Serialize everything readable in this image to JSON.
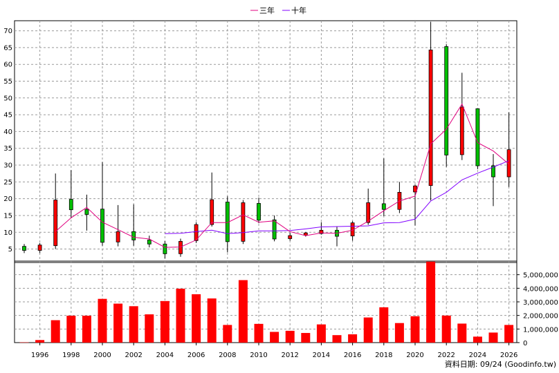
{
  "legend": {
    "ma3_label": "三年",
    "ma10_label": "十年"
  },
  "footer": "資料日期: 09/24  (Goodinfo.tw)",
  "colors": {
    "up": "#ff0000",
    "down": "#00c000",
    "ma3": "#e0007f",
    "ma10": "#8000ff",
    "volume": "#ff0000",
    "grid": "#999999"
  },
  "chart_data": [
    {
      "type": "candlestick",
      "title": "",
      "x_ticks": [
        "1996",
        "1998",
        "2000",
        "2002",
        "2004",
        "2006",
        "2008",
        "2010",
        "2012",
        "2014",
        "2016",
        "2018",
        "2020",
        "2022",
        "2024",
        "2026"
      ],
      "y_ticks": [
        5,
        10,
        15,
        20,
        25,
        30,
        35,
        40,
        45,
        50,
        55,
        60,
        65,
        70
      ],
      "ylim": [
        1,
        73
      ],
      "candles": [
        {
          "year": 1995,
          "open": 5.8,
          "close": 4.6,
          "high": 6.5,
          "low": 3.8
        },
        {
          "year": 1996,
          "open": 4.6,
          "close": 6.2,
          "high": 6.8,
          "low": 3.8
        },
        {
          "year": 1997,
          "open": 6.0,
          "close": 19.6,
          "high": 27.5,
          "low": 5.0
        },
        {
          "year": 1998,
          "open": 19.8,
          "close": 16.7,
          "high": 28.5,
          "low": 14.2
        },
        {
          "year": 1999,
          "open": 16.8,
          "close": 15.3,
          "high": 21.2,
          "low": 10.5
        },
        {
          "year": 2000,
          "open": 16.9,
          "close": 7.0,
          "high": 30.9,
          "low": 6.0
        },
        {
          "year": 2001,
          "open": 7.1,
          "close": 10.2,
          "high": 18.1,
          "low": 5.8
        },
        {
          "year": 2002,
          "open": 10.2,
          "close": 7.7,
          "high": 18.3,
          "low": 6.0
        },
        {
          "year": 2003,
          "open": 7.7,
          "close": 6.5,
          "high": 9.0,
          "low": 5.5
        },
        {
          "year": 2004,
          "open": 6.5,
          "close": 3.6,
          "high": 7.4,
          "low": 2.2
        },
        {
          "year": 2005,
          "open": 3.6,
          "close": 7.3,
          "high": 8.1,
          "low": 2.7
        },
        {
          "year": 2006,
          "open": 7.5,
          "close": 12.3,
          "high": 13.0,
          "low": 6.8
        },
        {
          "year": 2007,
          "open": 12.3,
          "close": 19.7,
          "high": 27.8,
          "low": 11.7
        },
        {
          "year": 2008,
          "open": 19.0,
          "close": 7.2,
          "high": 20.7,
          "low": 4.0
        },
        {
          "year": 2009,
          "open": 7.3,
          "close": 18.8,
          "high": 19.6,
          "low": 6.5
        },
        {
          "year": 2010,
          "open": 18.6,
          "close": 13.6,
          "high": 20.3,
          "low": 12.7
        },
        {
          "year": 2011,
          "open": 13.7,
          "close": 8.0,
          "high": 15.0,
          "low": 7.3
        },
        {
          "year": 2012,
          "open": 8.1,
          "close": 9.0,
          "high": 9.8,
          "low": 7.5
        },
        {
          "year": 2013,
          "open": 9.1,
          "close": 9.8,
          "high": 10.1,
          "low": 8.7
        },
        {
          "year": 2014,
          "open": 9.6,
          "close": 10.6,
          "high": 13.0,
          "low": 9.3
        },
        {
          "year": 2015,
          "open": 10.6,
          "close": 8.8,
          "high": 11.7,
          "low": 5.8
        },
        {
          "year": 2016,
          "open": 8.9,
          "close": 12.8,
          "high": 13.3,
          "low": 7.5
        },
        {
          "year": 2017,
          "open": 12.9,
          "close": 18.8,
          "high": 23.0,
          "low": 12.2
        },
        {
          "year": 2018,
          "open": 18.5,
          "close": 16.8,
          "high": 32.0,
          "low": 14.8
        },
        {
          "year": 2019,
          "open": 16.8,
          "close": 21.9,
          "high": 25.0,
          "low": 15.7
        },
        {
          "year": 2020,
          "open": 22.0,
          "close": 23.8,
          "high": 24.2,
          "low": 12.0
        },
        {
          "year": 2021,
          "open": 23.9,
          "close": 64.3,
          "high": 72.7,
          "low": 19.5
        },
        {
          "year": 2022,
          "open": 65.3,
          "close": 33.0,
          "high": 66.0,
          "low": 29.5
        },
        {
          "year": 2023,
          "open": 33.1,
          "close": 47.3,
          "high": 57.5,
          "low": 31.5
        },
        {
          "year": 2024,
          "open": 46.8,
          "close": 29.8,
          "high": 46.8,
          "low": 28.8
        },
        {
          "year": 2025,
          "open": 29.8,
          "close": 26.5,
          "high": 33.3,
          "low": 17.8
        },
        {
          "year": 2026,
          "open": 26.5,
          "close": 34.6,
          "high": 45.7,
          "low": 23.5
        }
      ],
      "ma3": [
        {
          "year": 1997,
          "value": 10.2
        },
        {
          "year": 1998,
          "value": 14.3
        },
        {
          "year": 1999,
          "value": 17.4
        },
        {
          "year": 2000,
          "value": 13.0
        },
        {
          "year": 2001,
          "value": 10.8
        },
        {
          "year": 2002,
          "value": 8.5
        },
        {
          "year": 2003,
          "value": 8.0
        },
        {
          "year": 2004,
          "value": 5.5
        },
        {
          "year": 2005,
          "value": 5.6
        },
        {
          "year": 2006,
          "value": 7.7
        },
        {
          "year": 2007,
          "value": 12.9
        },
        {
          "year": 2008,
          "value": 12.9
        },
        {
          "year": 2009,
          "value": 15.2
        },
        {
          "year": 2010,
          "value": 13.0
        },
        {
          "year": 2011,
          "value": 13.4
        },
        {
          "year": 2012,
          "value": 10.2
        },
        {
          "year": 2013,
          "value": 9.0
        },
        {
          "year": 2014,
          "value": 9.8
        },
        {
          "year": 2015,
          "value": 9.7
        },
        {
          "year": 2016,
          "value": 10.6
        },
        {
          "year": 2017,
          "value": 13.3
        },
        {
          "year": 2018,
          "value": 16.4
        },
        {
          "year": 2019,
          "value": 19.3
        },
        {
          "year": 2020,
          "value": 20.8
        },
        {
          "year": 2021,
          "value": 36.3
        },
        {
          "year": 2022,
          "value": 40.7
        },
        {
          "year": 2023,
          "value": 48.2
        },
        {
          "year": 2024,
          "value": 36.7
        },
        {
          "year": 2025,
          "value": 34.2
        },
        {
          "year": 2026,
          "value": 30.3
        }
      ],
      "ma10": [
        {
          "year": 2004,
          "value": 9.6
        },
        {
          "year": 2005,
          "value": 9.7
        },
        {
          "year": 2006,
          "value": 10.2
        },
        {
          "year": 2007,
          "value": 10.6
        },
        {
          "year": 2008,
          "value": 9.6
        },
        {
          "year": 2009,
          "value": 9.9
        },
        {
          "year": 2010,
          "value": 10.4
        },
        {
          "year": 2011,
          "value": 10.4
        },
        {
          "year": 2012,
          "value": 10.5
        },
        {
          "year": 2013,
          "value": 11.0
        },
        {
          "year": 2014,
          "value": 11.6
        },
        {
          "year": 2015,
          "value": 11.7
        },
        {
          "year": 2016,
          "value": 11.8
        },
        {
          "year": 2017,
          "value": 11.9
        },
        {
          "year": 2018,
          "value": 12.8
        },
        {
          "year": 2019,
          "value": 12.9
        },
        {
          "year": 2020,
          "value": 13.9
        },
        {
          "year": 2021,
          "value": 19.3
        },
        {
          "year": 2022,
          "value": 21.9
        },
        {
          "year": 2023,
          "value": 25.6
        },
        {
          "year": 2024,
          "value": 27.6
        },
        {
          "year": 2025,
          "value": 29.4
        },
        {
          "year": 2026,
          "value": 31.3
        }
      ]
    },
    {
      "type": "bar",
      "title": "",
      "y_ticks": [
        "0",
        "1,000,000",
        "2,000,000",
        "3,000,000",
        "4,000,000",
        "5,000,000"
      ],
      "ylim": [
        0,
        6000000
      ],
      "categories": [
        1995,
        1996,
        1997,
        1998,
        1999,
        2000,
        2001,
        2002,
        2003,
        2004,
        2005,
        2006,
        2007,
        2008,
        2009,
        2010,
        2011,
        2012,
        2013,
        2014,
        2015,
        2016,
        2017,
        2018,
        2019,
        2020,
        2021,
        2022,
        2023,
        2024,
        2025,
        2026
      ],
      "values": [
        20000,
        190000,
        1650000,
        1980000,
        1980000,
        3220000,
        2870000,
        2680000,
        2080000,
        3060000,
        3970000,
        3560000,
        3250000,
        1300000,
        4600000,
        1380000,
        790000,
        870000,
        710000,
        1340000,
        550000,
        610000,
        1850000,
        2600000,
        1440000,
        1940000,
        5960000,
        1990000,
        1400000,
        440000,
        740000,
        1300000
      ]
    }
  ]
}
